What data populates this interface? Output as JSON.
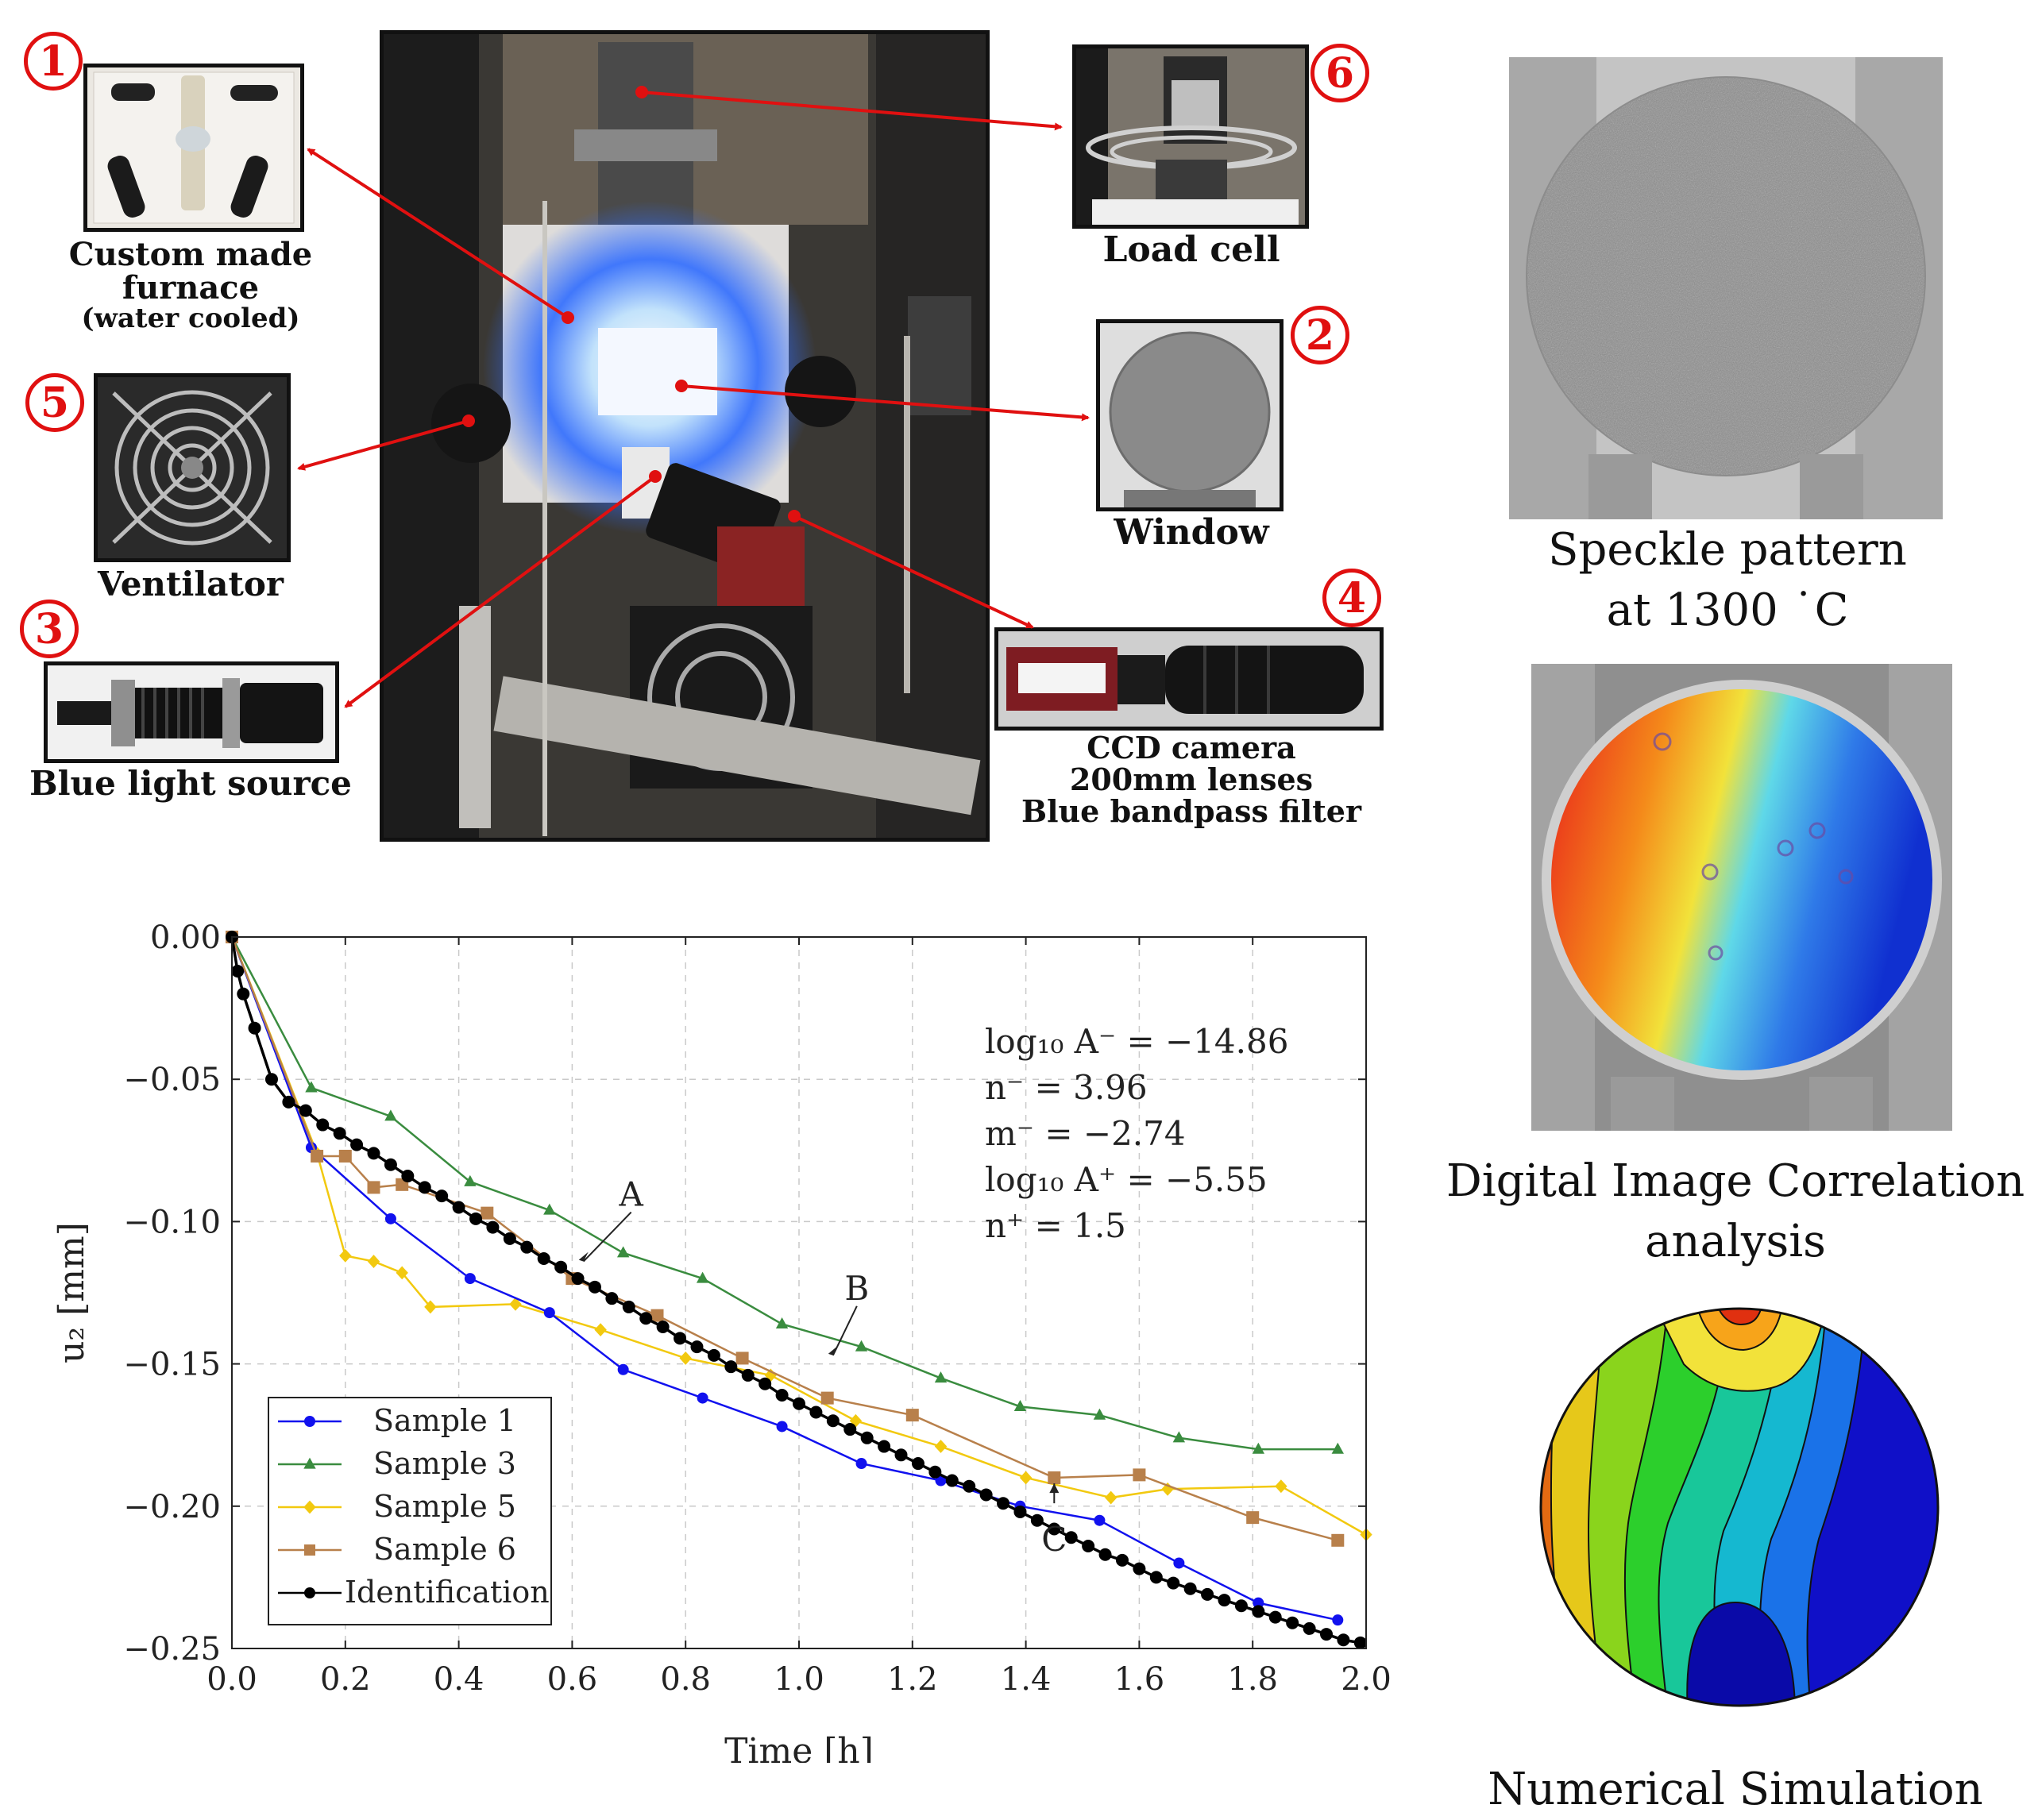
{
  "setup": {
    "badges": [
      "1",
      "2",
      "3",
      "4",
      "5",
      "6"
    ],
    "captions": {
      "furnace": [
        "Custom made",
        "furnace",
        "(water cooled)"
      ],
      "load_cell": "Load cell",
      "window": "Window",
      "ventilator": "Ventilator",
      "blue_light": "Blue light source",
      "camera": [
        "CCD camera",
        "200mm lenses",
        "Blue bandpass filter"
      ]
    }
  },
  "side": {
    "speckle_caption": [
      "Speckle pattern",
      "at 1300 ˙C"
    ],
    "dic_caption": [
      "Digital Image Correlation",
      "analysis"
    ],
    "sim_caption": "Numerical Simulation"
  },
  "params": [
    "log₁₀ A⁻ = −14.86",
    "n⁻ = 3.96",
    "m⁻ = −2.74",
    "log₁₀ A⁺ = −5.55",
    "n⁺ = 1.5"
  ],
  "colors": {
    "sample1": "#1111ee",
    "sample3": "#3a8c3f",
    "sample5": "#f2c90f",
    "sample6": "#b8804b",
    "ident": "#000000"
  },
  "chart_data": {
    "type": "line",
    "title": "",
    "xlabel": "Time [h]",
    "ylabel": "u₂ [mm]",
    "xlim": [
      0,
      2.0
    ],
    "ylim": [
      -0.25,
      0.0
    ],
    "xticks": [
      "0.0",
      "0.2",
      "0.4",
      "0.6",
      "0.8",
      "1.0",
      "1.2",
      "1.4",
      "1.6",
      "1.8",
      "2.0"
    ],
    "yticks": [
      "0.00",
      "−0.05",
      "−0.10",
      "−0.15",
      "−0.20",
      "−0.25"
    ],
    "grid": true,
    "legend_position": "bottom-left",
    "series": [
      {
        "name": "Sample 1",
        "marker": "circle",
        "color": "#1111ee",
        "x": [
          0,
          0.14,
          0.28,
          0.42,
          0.56,
          0.69,
          0.83,
          0.97,
          1.11,
          1.25,
          1.39,
          1.53,
          1.67,
          1.81,
          1.95
        ],
        "y": [
          0,
          -0.074,
          -0.099,
          -0.12,
          -0.132,
          -0.152,
          -0.162,
          -0.172,
          -0.185,
          -0.191,
          -0.2,
          -0.205,
          -0.22,
          -0.234,
          -0.24
        ]
      },
      {
        "name": "Sample 3",
        "marker": "triangle",
        "color": "#3a8c3f",
        "x": [
          0,
          0.14,
          0.28,
          0.42,
          0.56,
          0.69,
          0.83,
          0.97,
          1.11,
          1.25,
          1.39,
          1.53,
          1.67,
          1.81,
          1.95
        ],
        "y": [
          0,
          -0.053,
          -0.063,
          -0.086,
          -0.096,
          -0.111,
          -0.12,
          -0.136,
          -0.144,
          -0.155,
          -0.165,
          -0.168,
          -0.176,
          -0.18,
          -0.18
        ]
      },
      {
        "name": "Sample 5",
        "marker": "diamond",
        "color": "#f2c90f",
        "x": [
          0,
          0.15,
          0.2,
          0.25,
          0.3,
          0.35,
          0.5,
          0.65,
          0.8,
          0.95,
          1.1,
          1.25,
          1.4,
          1.55,
          1.65,
          1.85,
          2.0
        ],
        "y": [
          0,
          -0.076,
          -0.112,
          -0.114,
          -0.118,
          -0.13,
          -0.129,
          -0.138,
          -0.148,
          -0.154,
          -0.17,
          -0.179,
          -0.19,
          -0.197,
          -0.194,
          -0.193,
          -0.21
        ]
      },
      {
        "name": "Sample 6",
        "marker": "square",
        "color": "#b8804b",
        "x": [
          0,
          0.15,
          0.2,
          0.25,
          0.3,
          0.45,
          0.6,
          0.75,
          0.9,
          1.05,
          1.2,
          1.45,
          1.6,
          1.8,
          1.95
        ],
        "y": [
          0,
          -0.077,
          -0.077,
          -0.088,
          -0.087,
          -0.097,
          -0.12,
          -0.133,
          -0.148,
          -0.162,
          -0.168,
          -0.19,
          -0.189,
          -0.204,
          -0.212
        ]
      },
      {
        "name": "Identification",
        "marker": "circle",
        "color": "#000000",
        "x": [
          0,
          0.01,
          0.02,
          0.04,
          0.07,
          0.1,
          0.13,
          0.16,
          0.19,
          0.22,
          0.25,
          0.28,
          0.31,
          0.34,
          0.37,
          0.4,
          0.43,
          0.46,
          0.49,
          0.52,
          0.55,
          0.58,
          0.61,
          0.64,
          0.67,
          0.7,
          0.73,
          0.76,
          0.79,
          0.82,
          0.85,
          0.88,
          0.91,
          0.94,
          0.97,
          1.0,
          1.03,
          1.06,
          1.09,
          1.12,
          1.15,
          1.18,
          1.21,
          1.24,
          1.27,
          1.3,
          1.33,
          1.36,
          1.39,
          1.42,
          1.45,
          1.48,
          1.51,
          1.54,
          1.57,
          1.6,
          1.63,
          1.66,
          1.69,
          1.72,
          1.75,
          1.78,
          1.81,
          1.84,
          1.87,
          1.9,
          1.93,
          1.96,
          1.99
        ],
        "y": [
          0,
          -0.012,
          -0.02,
          -0.032,
          -0.05,
          -0.058,
          -0.061,
          -0.066,
          -0.069,
          -0.073,
          -0.076,
          -0.08,
          -0.084,
          -0.088,
          -0.091,
          -0.095,
          -0.099,
          -0.102,
          -0.106,
          -0.109,
          -0.113,
          -0.116,
          -0.12,
          -0.123,
          -0.127,
          -0.13,
          -0.134,
          -0.137,
          -0.141,
          -0.144,
          -0.147,
          -0.151,
          -0.154,
          -0.157,
          -0.161,
          -0.164,
          -0.167,
          -0.17,
          -0.173,
          -0.176,
          -0.179,
          -0.182,
          -0.185,
          -0.188,
          -0.191,
          -0.193,
          -0.196,
          -0.199,
          -0.202,
          -0.205,
          -0.208,
          -0.211,
          -0.214,
          -0.217,
          -0.219,
          -0.222,
          -0.225,
          -0.227,
          -0.229,
          -0.231,
          -0.233,
          -0.235,
          -0.237,
          -0.239,
          -0.241,
          -0.243,
          -0.245,
          -0.247,
          -0.248
        ]
      }
    ],
    "annotations": [
      {
        "label": "A",
        "x": 0.62,
        "y": -0.114
      },
      {
        "label": "B",
        "x": 1.06,
        "y": -0.147
      },
      {
        "label": "C",
        "x": 1.45,
        "y": -0.192
      }
    ]
  }
}
